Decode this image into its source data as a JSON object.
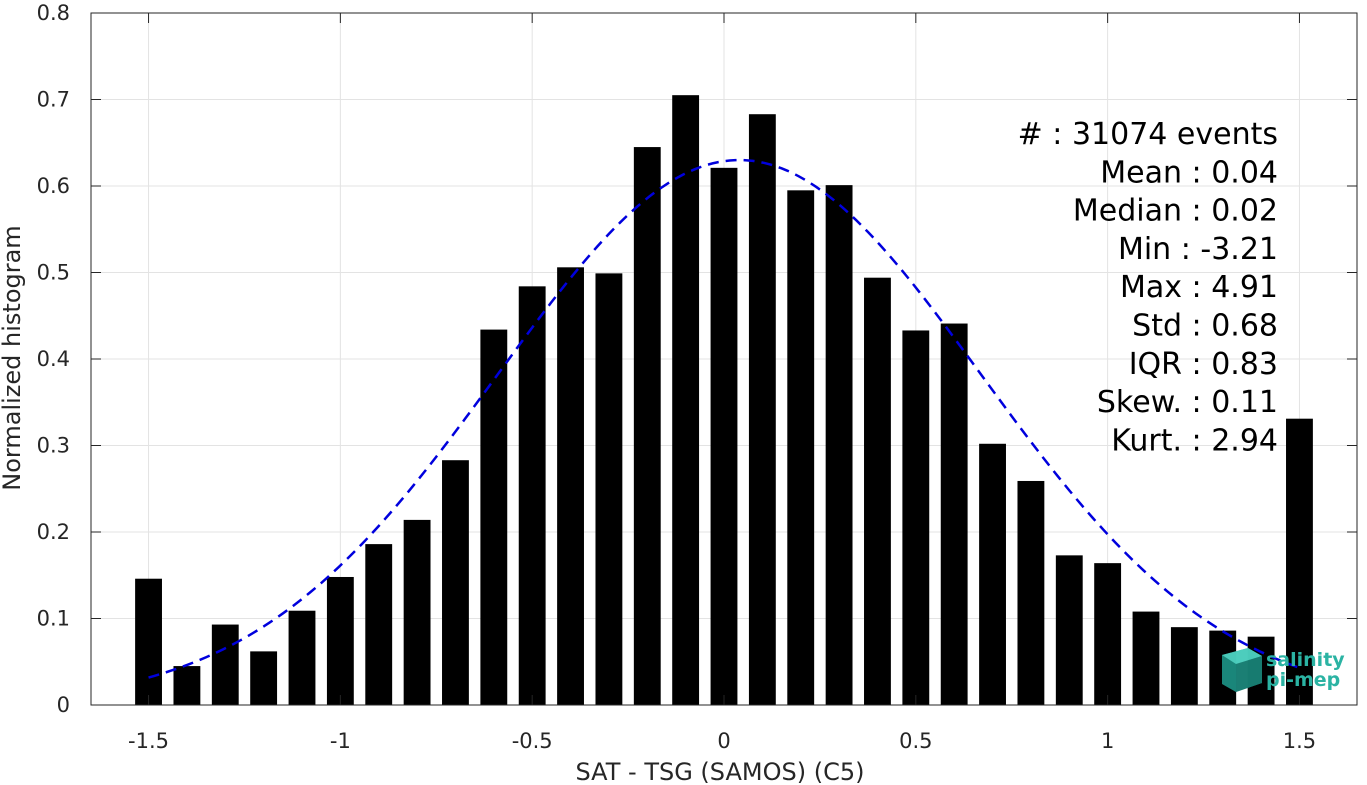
{
  "chart_data": {
    "type": "bar",
    "xlabel": "SAT - TSG (SAMOS) (C5)",
    "ylabel": "Normalized histogram",
    "xlim": [
      -1.65,
      1.65
    ],
    "ylim": [
      0,
      0.8
    ],
    "grid": true,
    "xticks": [
      -1.5,
      -1,
      -0.5,
      0,
      0.5,
      1,
      1.5
    ],
    "xtick_labels": [
      "-1.5",
      "-1",
      "-0.5",
      "0",
      "0.5",
      "1",
      "1.5"
    ],
    "yticks": [
      0,
      0.1,
      0.2,
      0.3,
      0.4,
      0.5,
      0.6,
      0.7,
      0.8
    ],
    "ytick_labels": [
      "0",
      "0.1",
      "0.2",
      "0.3",
      "0.4",
      "0.5",
      "0.6",
      "0.7",
      "0.8"
    ],
    "bar_color": "#000000",
    "bar_width": 0.07,
    "series": [
      {
        "x": [
          -1.5,
          -1.4,
          -1.3,
          -1.2,
          -1.1,
          -1.0,
          -0.9,
          -0.8,
          -0.7,
          -0.6,
          -0.5,
          -0.4,
          -0.3,
          -0.2,
          -0.1,
          0.0,
          0.1,
          0.2,
          0.3,
          0.4,
          0.5,
          0.6,
          0.7,
          0.8,
          0.9,
          1.0,
          1.1,
          1.2,
          1.3,
          1.4,
          1.5
        ],
        "values": [
          0.146,
          0.045,
          0.093,
          0.062,
          0.109,
          0.148,
          0.186,
          0.214,
          0.283,
          0.434,
          0.484,
          0.506,
          0.499,
          0.645,
          0.705,
          0.621,
          0.683,
          0.595,
          0.601,
          0.494,
          0.433,
          0.441,
          0.302,
          0.259,
          0.173,
          0.164,
          0.108,
          0.09,
          0.086,
          0.079,
          0.331
        ]
      }
    ],
    "fit_curve": {
      "style": "dashed",
      "color": "#0000dd",
      "mean": 0.04,
      "std": 0.63,
      "peak": 0.63,
      "x_range": [
        -1.5,
        1.5
      ]
    },
    "annotations": [
      "#  : 31074 events",
      "Mean : 0.04",
      "Median : 0.02",
      "Min : -3.21",
      "Max : 4.91",
      "Std : 0.68",
      "IQR : 0.83",
      "Skew. : 0.11",
      "Kurt. : 2.94"
    ]
  },
  "logo": {
    "line1": "salinity",
    "line2": "pi-mep",
    "color": "#2bb3a3"
  }
}
